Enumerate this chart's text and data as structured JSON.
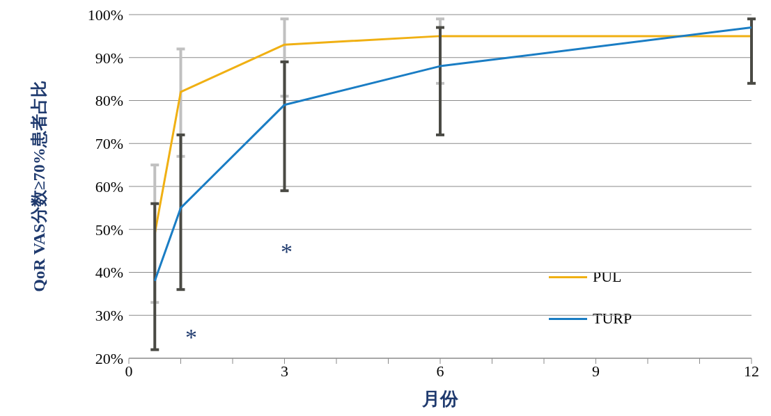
{
  "chart_data": {
    "type": "line",
    "xlabel": "月份",
    "ylabel": "QoR VAS分数≥70%患者占比",
    "x": [
      0.5,
      1,
      3,
      6,
      12
    ],
    "series": [
      {
        "name": "PUL",
        "color": "#f0b013",
        "values": [
          49,
          82,
          93,
          95,
          95
        ],
        "errors": [
          [
            33,
            65
          ],
          [
            67,
            92
          ],
          [
            81,
            99
          ],
          [
            84,
            99
          ],
          null
        ]
      },
      {
        "name": "TURP",
        "color": "#1a7dc4",
        "values": [
          38,
          55,
          79,
          88,
          97
        ],
        "errors": [
          [
            22,
            56
          ],
          [
            36,
            72
          ],
          [
            59,
            89
          ],
          [
            72,
            97
          ],
          [
            84,
            99
          ]
        ]
      }
    ],
    "xlim": [
      0,
      12
    ],
    "xticks": [
      0,
      {
        "value": 1,
        "label": null
      },
      {
        "value": 2,
        "label": null
      },
      3,
      {
        "value": 4,
        "label": null
      },
      {
        "value": 5,
        "label": null
      },
      6,
      {
        "value": 7,
        "label": null
      },
      {
        "value": 8,
        "label": null
      },
      9,
      {
        "value": 10,
        "label": null
      },
      {
        "value": 11,
        "label": null
      },
      12
    ],
    "ylim": [
      20,
      100
    ],
    "yticks": [
      {
        "value": 20,
        "label": "20%"
      },
      {
        "value": 30,
        "label": "30%"
      },
      {
        "value": 40,
        "label": "40%"
      },
      {
        "value": 50,
        "label": "50%"
      },
      {
        "value": 60,
        "label": "60%"
      },
      {
        "value": 70,
        "label": "70%"
      },
      {
        "value": 80,
        "label": "80%"
      },
      {
        "value": 90,
        "label": "90%"
      },
      {
        "value": 100,
        "label": "100%"
      }
    ],
    "grid": "y",
    "legend": "bottom right",
    "marker": "none",
    "line_style": "solid",
    "annotations": [
      "*",
      "*"
    ]
  }
}
